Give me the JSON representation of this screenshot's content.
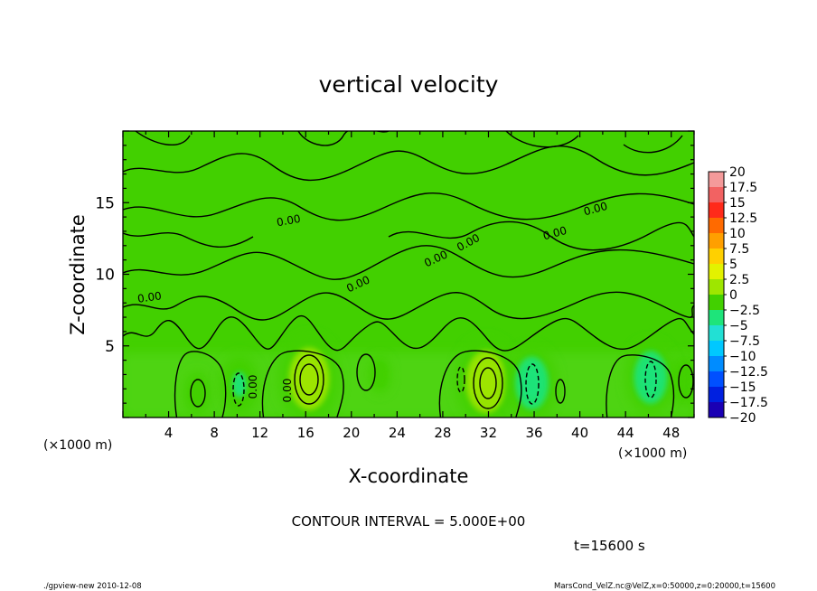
{
  "chart_data": {
    "type": "heatmap",
    "title": "vertical velocity",
    "xlabel": "X-coordinate",
    "ylabel": "Z-coordinate",
    "x_unit_label_left": "(×1000 m)",
    "x_unit_label_right": "(×1000 m)",
    "xlim": [
      0,
      50
    ],
    "ylim": [
      0,
      20
    ],
    "x_ticks": [
      "4",
      "8",
      "12",
      "16",
      "20",
      "24",
      "28",
      "32",
      "36",
      "40",
      "44",
      "48"
    ],
    "y_ticks": [
      "5",
      "10",
      "15"
    ],
    "colorbar_labels": [
      "20",
      "17.5",
      "15",
      "12.5",
      "10",
      "7.5",
      "5",
      "2.5",
      "0",
      "−2.5",
      "−5",
      "−7.5",
      "−10",
      "−12.5",
      "−15",
      "−17.5",
      "−20"
    ],
    "colorbar_colors": [
      "#f49a9a",
      "#f26262",
      "#ff2a1a",
      "#ff6a00",
      "#ff9f00",
      "#ffd000",
      "#e3f200",
      "#9ee600",
      "#42d000",
      "#1ee47a",
      "#22e0d4",
      "#00c8ff",
      "#008cff",
      "#0050ff",
      "#0020e0",
      "#1a00b4",
      "#6a0aa0"
    ],
    "contour_interval_text": "CONTOUR INTERVAL = 5.000E+00",
    "contour_labels": [
      "0.00",
      "0.00",
      "0.00",
      "0.00",
      "0.00",
      "0.00",
      "0.00",
      "0.00",
      "0.00"
    ],
    "time_text": "t=15600 s",
    "features": [
      {
        "x": 6.5,
        "z": 1.7,
        "w": 0.6
      },
      {
        "x": 16.3,
        "z": 2.7,
        "w": 3.2
      },
      {
        "x": 31.8,
        "z": 2.5,
        "w": 3.2
      },
      {
        "x": 49.2,
        "z": 2.6,
        "w": 1.2
      },
      {
        "x": 10.2,
        "z": 2.3,
        "w": -1.6
      },
      {
        "x": 35.8,
        "z": 2.4,
        "w": -2.4
      },
      {
        "x": 46.2,
        "z": 2.8,
        "w": -2.4
      },
      {
        "x": 22.5,
        "z": 3.0,
        "w": -0.3
      }
    ],
    "background_value": 0.2
  },
  "footer": {
    "left": "./gpview-new  2010-12-08",
    "right": "MarsCond_VelZ.nc@VelZ,x=0:50000,z=0:20000,t=15600"
  }
}
